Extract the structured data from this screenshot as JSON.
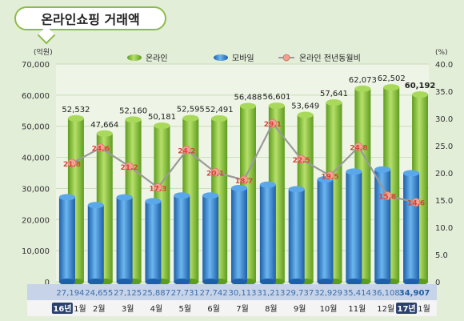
{
  "title": "온라인쇼핑 거래액",
  "colors": {
    "online": "#8dc63f",
    "online_dark": "#5e9c1e",
    "mobile": "#3a8fd9",
    "mobile_dark": "#1d5fa8",
    "line": "#9a9a9a",
    "marker": "#f2a08f",
    "bg": "#e3eed9",
    "plot_bg": "#eef5e6",
    "grid": "#c9dcb8",
    "category_band": "#c6d3e8"
  },
  "chart_data": {
    "type": "bar",
    "title": "온라인쇼핑 거래액",
    "y_left_unit": "(억원)",
    "y_right_unit": "(%)",
    "y_left_ticks": [
      "70,000",
      "60,000",
      "50,000",
      "40,000",
      "30,000",
      "20,000",
      "10,000",
      "0"
    ],
    "y_right_ticks": [
      "40.0",
      "35.0",
      "30.0",
      "25.0",
      "20.0",
      "15.0",
      "10.0",
      "5.0",
      "0"
    ],
    "ylim_left": [
      0,
      70000
    ],
    "ylim_right": [
      0,
      40
    ],
    "categories": [
      {
        "year": "16년",
        "month": "1월"
      },
      {
        "year": "",
        "month": "2월"
      },
      {
        "year": "",
        "month": "3월"
      },
      {
        "year": "",
        "month": "4월"
      },
      {
        "year": "",
        "month": "5월"
      },
      {
        "year": "",
        "month": "6월"
      },
      {
        "year": "",
        "month": "7월"
      },
      {
        "year": "",
        "month": "8월"
      },
      {
        "year": "",
        "month": "9월"
      },
      {
        "year": "",
        "month": "10월"
      },
      {
        "year": "",
        "month": "11월"
      },
      {
        "year": "",
        "month": "12월"
      },
      {
        "year": "17년",
        "month": "1월"
      }
    ],
    "series": [
      {
        "name": "온라인",
        "axis": "left",
        "values": [
          52532,
          47664,
          52160,
          50181,
          52595,
          52491,
          56488,
          56601,
          53649,
          57641,
          62073,
          62502,
          60192
        ],
        "labels": [
          "52,532",
          "47,664",
          "52,160",
          "50,181",
          "52,595",
          "52,491",
          "56,488",
          "56,601",
          "53,649",
          "57,641",
          "62,073",
          "62,502",
          "60,192"
        ]
      },
      {
        "name": "모바일",
        "axis": "left",
        "values": [
          27194,
          24655,
          27125,
          25887,
          27731,
          27742,
          30113,
          31213,
          29737,
          32929,
          35414,
          36108,
          34907
        ],
        "labels": [
          "27,194",
          "24,655",
          "27,125",
          "25,887",
          "27,731",
          "27,742",
          "30,113",
          "31,213",
          "29,737",
          "32,929",
          "35,414",
          "36,108",
          "34,907"
        ]
      },
      {
        "name": "온라인 전년동월비",
        "axis": "right",
        "values": [
          21.8,
          24.6,
          21.2,
          17.3,
          24.2,
          20.1,
          18.7,
          29.1,
          22.5,
          19.5,
          24.8,
          15.8,
          14.6
        ],
        "labels": [
          "21.8",
          "24.6",
          "21.2",
          "17.3",
          "24.2",
          "20.1",
          "18.7",
          "29.1",
          "22.5",
          "19.5",
          "24.8",
          "15.8",
          "14.6"
        ]
      }
    ],
    "legend_position": "top-center",
    "grid": true
  }
}
